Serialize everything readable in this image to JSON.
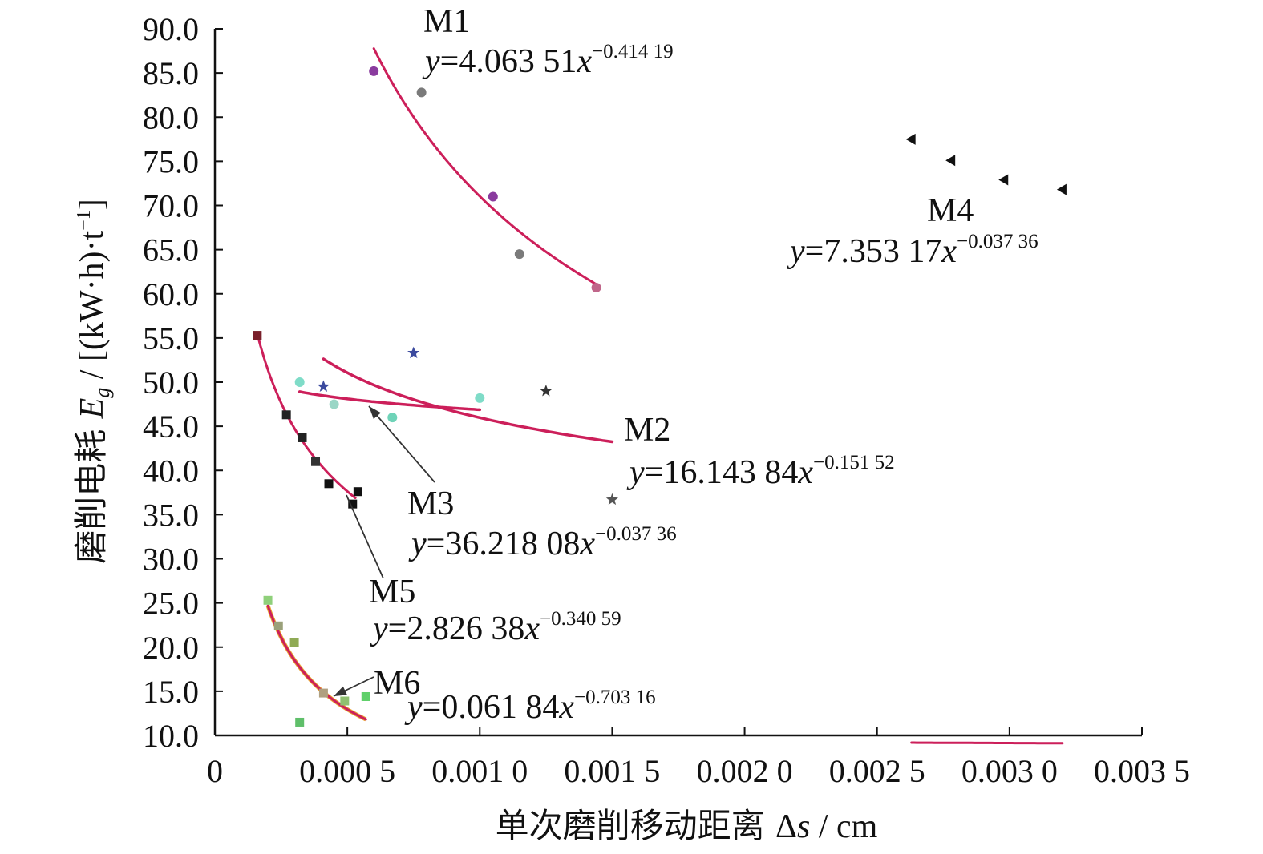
{
  "chart_data": {
    "type": "scatter",
    "title": "",
    "xlabel": "单次磨削移动距离 Δs / cm",
    "ylabel": "磨削电耗 E_g / [(kW·h)·t⁻¹]",
    "ylabel_parts": {
      "prefix": "磨削电耗 ",
      "symbol": "E",
      "sub": "g",
      "unit": " / [(kW·h)·t",
      "unit_sup": "−1",
      "unit_end": "]"
    },
    "xlabel_parts": {
      "prefix": "单次磨削移动距离 ",
      "symbol": "Δ",
      "var": "s",
      "unit": " / cm"
    },
    "xlim": [
      0,
      0.0035
    ],
    "ylim": [
      10,
      90
    ],
    "x_ticks": [
      0,
      0.0005,
      0.001,
      0.0015,
      0.002,
      0.0025,
      0.003,
      0.0035
    ],
    "x_tick_labels": [
      "0",
      "0.000 5",
      "0.001 0",
      "0.001 5",
      "0.002 0",
      "0.002 5",
      "0.003 0",
      "0.003 5"
    ],
    "y_ticks": [
      10,
      15,
      20,
      25,
      30,
      35,
      40,
      45,
      50,
      55,
      60,
      65,
      70,
      75,
      80,
      85,
      90
    ],
    "y_tick_labels": [
      "10.0",
      "15.0",
      "20.0",
      "25.0",
      "30.0",
      "35.0",
      "40.0",
      "45.0",
      "50.0",
      "55.0",
      "60.0",
      "65.0",
      "70.0",
      "75.0",
      "80.0",
      "85.0",
      "90.0"
    ],
    "grid": false,
    "legend": "none",
    "fit_color": "#cc1f5a",
    "series": [
      {
        "name": "M1",
        "marker": "circle",
        "x": [
          0.0006,
          0.00078,
          0.00105,
          0.00115,
          0.00144
        ],
        "y": [
          85.2,
          82.8,
          71.0,
          64.5,
          60.7
        ],
        "colors": [
          "#8a3b9e",
          "#7a7a7a",
          "#8a3b9e",
          "#7a7a7a",
          "#c0668a"
        ],
        "equation": {
          "lead": "y",
          "coef": "=4.063 51",
          "var": "x",
          "exp": "−0.414 19"
        },
        "fit": {
          "a": 4.06351,
          "b": -0.41419,
          "x_range": [
            0.0006,
            0.00145
          ],
          "width": 3
        }
      },
      {
        "name": "M2",
        "marker": "star",
        "x": [
          0.00041,
          0.00075,
          0.00125,
          0.0015
        ],
        "y": [
          49.5,
          53.3,
          49.0,
          36.7
        ],
        "colors": [
          "#3b4a9e",
          "#3b4a9e",
          "#333333",
          "#555555"
        ],
        "equation": {
          "lead": "y",
          "coef": "=16.143 84",
          "var": "x",
          "exp": "−0.151 52"
        },
        "fit": {
          "a": 16.14384,
          "b": -0.15152,
          "x_range": [
            0.00041,
            0.0015
          ],
          "width": 3.5
        }
      },
      {
        "name": "M3",
        "marker": "circle",
        "x": [
          0.00032,
          0.00045,
          0.00067,
          0.001
        ],
        "y": [
          50.0,
          47.5,
          46.0,
          48.2
        ],
        "colors": [
          "#7fdcc8",
          "#9ad6c6",
          "#6fd3b8",
          "#7fdcc8"
        ],
        "equation": {
          "lead": "y",
          "coef": "=36.218 08",
          "var": "x",
          "exp": "−0.037 36"
        },
        "fit": {
          "a": 36.21808,
          "b": -0.03736,
          "x_range": [
            0.00032,
            0.001
          ],
          "width": 3.5
        }
      },
      {
        "name": "M4",
        "marker": "triangle-left",
        "x": [
          0.00263,
          0.00278,
          0.00298,
          0.0032
        ],
        "y": [
          77.5,
          75.1,
          72.9,
          71.8
        ],
        "colors": [
          "#111111",
          "#111111",
          "#111111",
          "#111111"
        ],
        "equation": {
          "lead": "y",
          "coef": "=7.353 17",
          "var": "x",
          "exp": "−0.037 36"
        },
        "fit": {
          "a": 7.35317,
          "b": -0.03736,
          "x_range": [
            0.00263,
            0.0032
          ],
          "width": 3
        }
      },
      {
        "name": "M5",
        "marker": "square",
        "x": [
          0.00016,
          0.00027,
          0.00033,
          0.00038,
          0.00043,
          0.00052,
          0.00054
        ],
        "y": [
          55.3,
          46.3,
          43.7,
          41.0,
          38.5,
          36.2,
          37.6
        ],
        "colors": [
          "#7a1f2a",
          "#222222",
          "#222222",
          "#333333",
          "#111111",
          "#111111",
          "#111111"
        ],
        "equation": {
          "lead": "y",
          "coef": "=2.826 38",
          "var": "x",
          "exp": "−0.340 59"
        },
        "fit": {
          "a": 2.82638,
          "b": -0.34059,
          "x_range": [
            0.00016,
            0.00053
          ],
          "width": 3
        }
      },
      {
        "name": "M6",
        "marker": "square",
        "x": [
          0.0002,
          0.00024,
          0.0003,
          0.00032,
          0.00041,
          0.00049,
          0.00057
        ],
        "y": [
          25.3,
          22.4,
          20.5,
          11.5,
          14.8,
          13.9,
          14.4
        ],
        "colors": [
          "#8fd07a",
          "#9aa07a",
          "#8faa55",
          "#5fbf6a",
          "#b0a080",
          "#8fc070",
          "#5fd06a"
        ],
        "equation": {
          "lead": "y",
          "coef": "=0.061 84",
          "var": "x",
          "exp": "−0.703 16"
        },
        "fit": {
          "a": 0.06184,
          "b": -0.70316,
          "x_range": [
            0.0002,
            0.00057
          ],
          "width": 3,
          "under_color": "#e8a030"
        }
      }
    ]
  }
}
